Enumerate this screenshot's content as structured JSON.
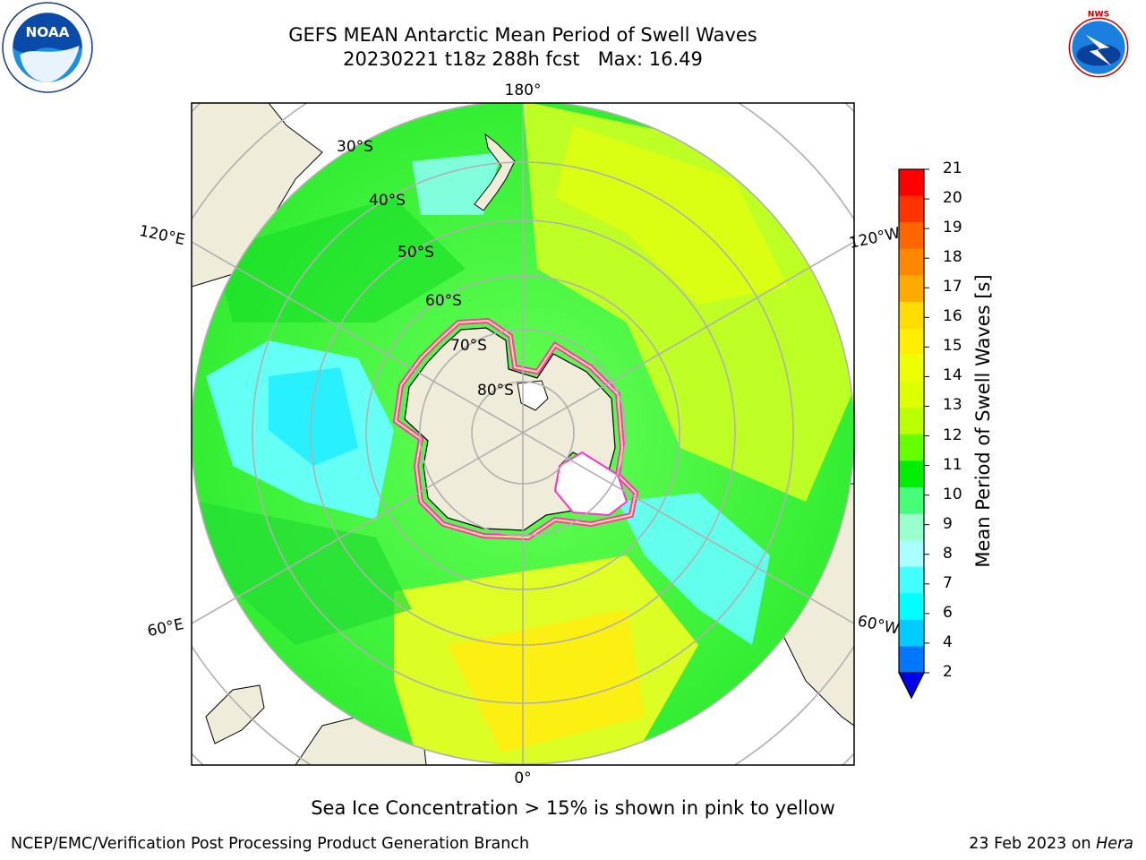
{
  "header": {
    "title_line1": "GEFS MEAN Antarctic Mean Period of Swell Waves",
    "title_line2": "20230221 t18z 288h fcst   Max: 16.49"
  },
  "logos": {
    "left": "noaa-logo",
    "right": "nws-logo",
    "nws_text": "NATIONAL WEATHER SERVICE"
  },
  "map": {
    "projection": "south-polar-stereographic",
    "longitude_labels": {
      "top": "180°",
      "bottom": "0°",
      "upper_left": "120°E",
      "upper_right": "120°W",
      "lower_left": "60°E",
      "lower_right": "60°W"
    },
    "latitude_labels": [
      "30°S",
      "40°S",
      "50°S",
      "60°S",
      "70°S",
      "80°S"
    ],
    "colors": {
      "land": "#efedda",
      "ice_edge": "#ff33cc",
      "ice_inner": "#ffffff",
      "grid": "#b0b0b0"
    }
  },
  "colorbar": {
    "label": "Mean Period of Swell Waves [s]",
    "ticks": [
      "21",
      "20",
      "19",
      "18",
      "17",
      "16",
      "15",
      "14",
      "13",
      "12",
      "11",
      "10",
      "9",
      "8",
      "7",
      "6",
      "4",
      "2"
    ],
    "colors": [
      "#ff0000",
      "#ff3300",
      "#ff6600",
      "#ff8800",
      "#ffaa00",
      "#ffdd00",
      "#ffee00",
      "#eeff00",
      "#ddff00",
      "#bbff00",
      "#66ff00",
      "#00ee00",
      "#44ff77",
      "#99ffcc",
      "#aaffff",
      "#44ffff",
      "#00ffff",
      "#00ccff",
      "#0077ff"
    ],
    "extend_color": "#0000ee"
  },
  "annotations": {
    "sea_ice_note": "Sea Ice Concentration > 15% is shown in pink to yellow"
  },
  "footer": {
    "left": "NCEP/EMC/Verification Post Processing Product Generation Branch",
    "right_prefix": "23 Feb 2023 on ",
    "right_host": "Hera"
  }
}
